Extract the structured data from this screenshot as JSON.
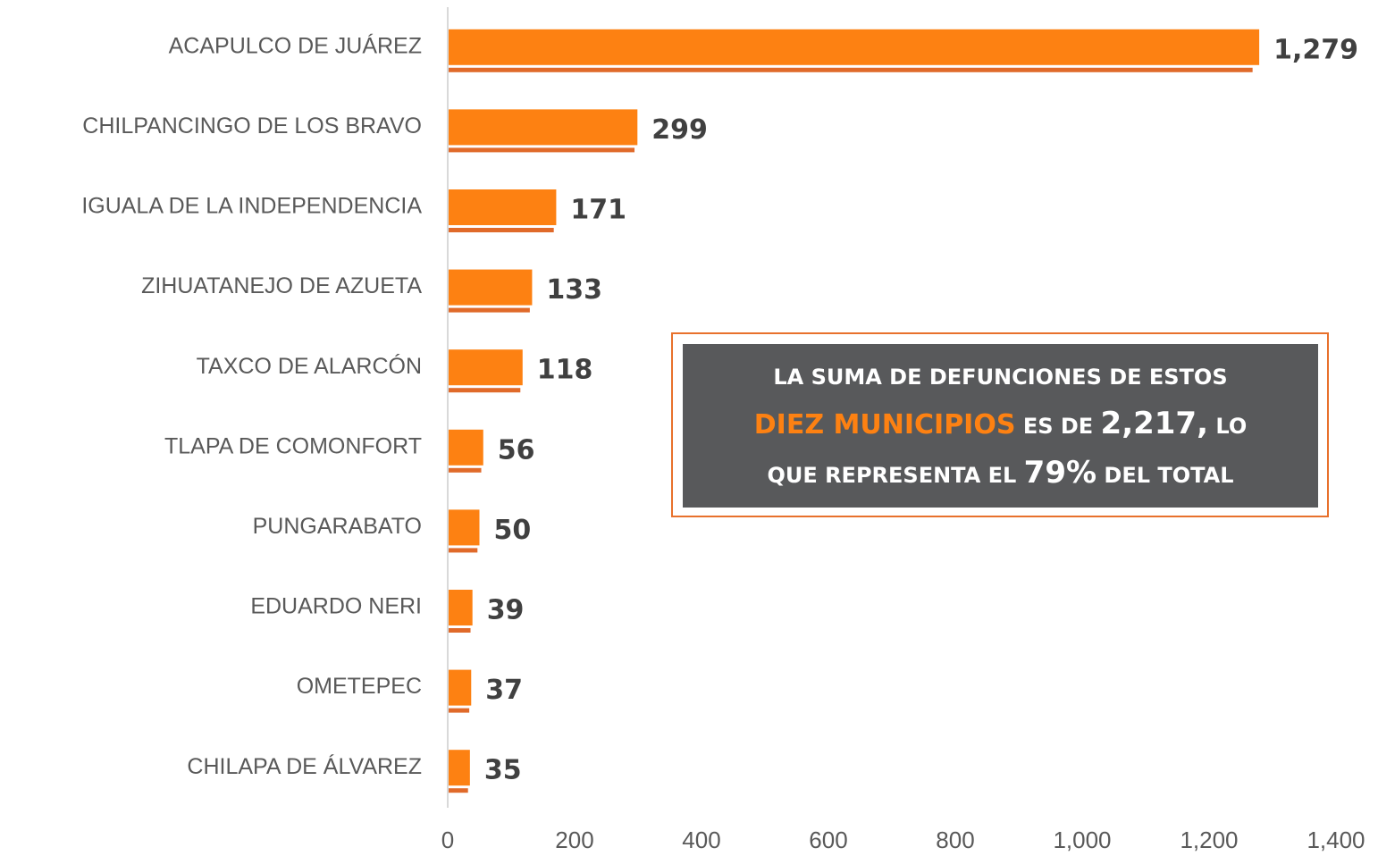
{
  "chart_data": {
    "type": "hbar",
    "categories": [
      "ACAPULCO DE JUÁREZ",
      "CHILPANCINGO DE LOS BRAVO",
      "IGUALA DE LA INDEPENDENCIA",
      "ZIHUATANEJO DE AZUETA",
      "TAXCO DE ALARCÓN",
      "TLAPA DE COMONFORT",
      "PUNGARABATO",
      "EDUARDO NERI",
      "OMETEPEC",
      "CHILAPA DE ÁLVAREZ"
    ],
    "values": [
      1279,
      299,
      171,
      133,
      118,
      56,
      50,
      39,
      37,
      35
    ],
    "value_labels": [
      "1,279",
      "299",
      "171",
      "133",
      "118",
      "56",
      "50",
      "39",
      "37",
      "35"
    ],
    "color": "#fd8112",
    "xlim": [
      0,
      1400
    ],
    "xticks": [
      0,
      200,
      400,
      600,
      800,
      {
        "value": 1000,
        "label": "1,000"
      },
      {
        "value": 1200,
        "label": "1,200"
      },
      {
        "value": 1400,
        "label": "1,400"
      }
    ],
    "annotation": {
      "lines": [
        [
          "LA SUMA DE DEFUNCIONES DE ESTOS"
        ],
        [
          "DIEZ MUNICIPIOS",
          "ES DE",
          "2,217,",
          "LO"
        ],
        [
          "QUE REPRESENTA EL",
          "79%",
          "DEL TOTAL"
        ]
      ]
    }
  }
}
